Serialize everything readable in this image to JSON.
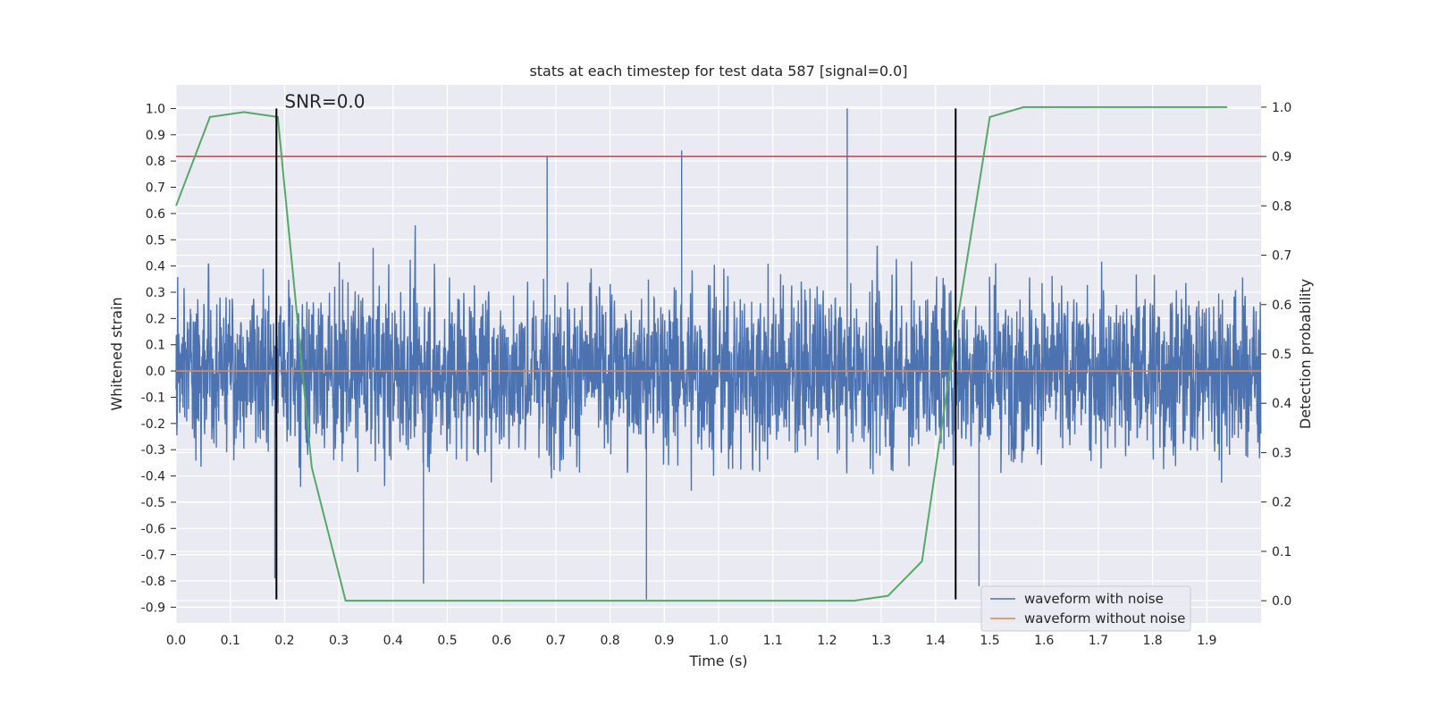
{
  "chart_data": {
    "type": "line",
    "title": "stats at each timestep for test data 587 [signal=0.0]",
    "xlabel": "Time (s)",
    "ylabel": "Whitened strain",
    "y2label": "Detection probability",
    "xlim": [
      0.0,
      2.0
    ],
    "ylim": [
      -0.96,
      1.09
    ],
    "y2lim": [
      -0.045,
      1.045
    ],
    "xticks": [
      "0.0",
      "0.1",
      "0.2",
      "0.3",
      "0.4",
      "0.5",
      "0.6",
      "0.7",
      "0.8",
      "0.9",
      "1.0",
      "1.1",
      "1.2",
      "1.3",
      "1.4",
      "1.5",
      "1.6",
      "1.7",
      "1.8",
      "1.9"
    ],
    "yticks": [
      "1.0",
      "0.9",
      "0.8",
      "0.7",
      "0.6",
      "0.5",
      "0.4",
      "0.3",
      "0.2",
      "0.1",
      "0.0",
      "-0.1",
      "-0.2",
      "-0.3",
      "-0.4",
      "-0.5",
      "-0.6",
      "-0.7",
      "-0.8",
      "-0.9"
    ],
    "y2ticks": [
      "1.0",
      "0.9",
      "0.8",
      "0.7",
      "0.6",
      "0.5",
      "0.4",
      "0.3",
      "0.2",
      "0.1",
      "0.0"
    ],
    "grid": true,
    "legend_position": "bottom-right",
    "series": [
      {
        "name": "waveform with noise",
        "color": "#4c72b0",
        "axis": "left",
        "sample_rate": 2048,
        "peak_min": -0.87,
        "peak_max": 1.0,
        "typical_range": [
          -0.55,
          0.65
        ]
      },
      {
        "name": "waveform without noise",
        "color": "#dd8452",
        "axis": "left",
        "x": [
          0.0,
          2.0
        ],
        "y": [
          0.0,
          0.0
        ]
      },
      {
        "name": "",
        "color": "#55a868",
        "axis": "right",
        "x": [
          0.0,
          0.0625,
          0.125,
          0.1875,
          0.25,
          0.3125,
          0.375,
          0.4375,
          0.5,
          0.5625,
          0.625,
          0.6875,
          0.75,
          0.8125,
          0.875,
          0.9375,
          1.0,
          1.0625,
          1.125,
          1.1875,
          1.25,
          1.3125,
          1.375,
          1.4375,
          1.5,
          1.5625,
          1.625,
          1.6875,
          1.75,
          1.8125,
          1.875,
          1.9375
        ],
        "y": [
          0.8,
          0.98,
          0.99,
          0.98,
          0.27,
          0.0,
          0.0,
          0.0,
          0.0,
          0.0,
          0.0,
          0.0,
          0.0,
          0.0,
          0.0,
          0.0,
          0.0,
          0.0,
          0.0,
          0.0,
          0.0,
          0.01,
          0.08,
          0.55,
          0.98,
          1.0,
          1.0,
          1.0,
          1.0,
          1.0,
          1.0,
          1.0
        ]
      },
      {
        "name": "",
        "color": "#c44e52",
        "axis": "right",
        "x": [
          0.0,
          2.0
        ],
        "y": [
          0.9,
          0.9
        ]
      }
    ],
    "vlines": [
      {
        "x": 0.185,
        "ymin": -0.87,
        "ymax": 1.0,
        "color": "#000000"
      },
      {
        "x": 1.437,
        "ymin": -0.87,
        "ymax": 1.0,
        "color": "#000000"
      }
    ],
    "annotations": [
      {
        "text": "SNR=0.0",
        "x": 0.2,
        "y": 1.0
      }
    ]
  }
}
